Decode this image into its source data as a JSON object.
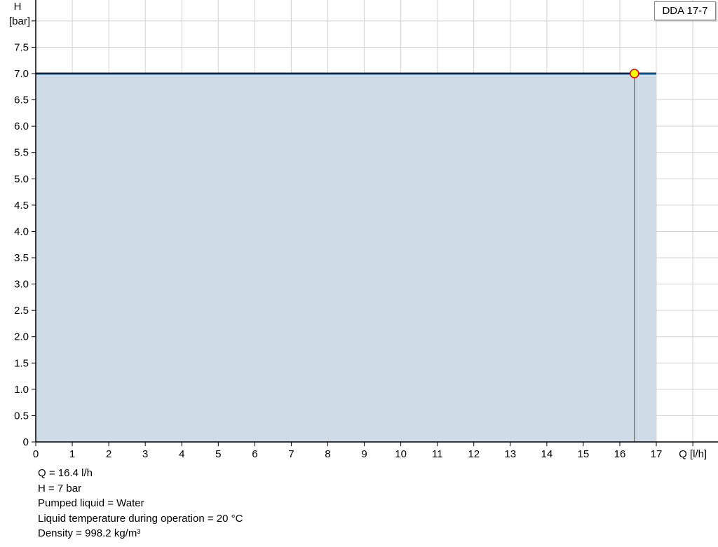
{
  "chart_data": {
    "type": "area",
    "title": "",
    "xlabel": "Q [l/h]",
    "ylabel_top": "H",
    "ylabel_unit": "[bar]",
    "xlim": [
      0,
      18
    ],
    "ylim": [
      0,
      8
    ],
    "xticks": [
      0,
      1,
      2,
      3,
      4,
      5,
      6,
      7,
      8,
      9,
      10,
      11,
      12,
      13,
      14,
      15,
      16,
      17
    ],
    "yticks": [
      "0",
      "0.5",
      "1.0",
      "1.5",
      "2.0",
      "2.5",
      "3.0",
      "3.5",
      "4.0",
      "4.5",
      "5.0",
      "5.5",
      "6.0",
      "6.5",
      "7.0",
      "7.5"
    ],
    "grid": true,
    "series": [
      {
        "name": "DDA 17-7",
        "x": [
          0,
          17
        ],
        "y": [
          7,
          7
        ],
        "color": "#0b4f8a",
        "fill": "#cfdbe7"
      }
    ],
    "duty_point": {
      "x": 16.4,
      "y": 7,
      "color": "#ffff00",
      "edge": "#e00000"
    },
    "legend": "top-right"
  },
  "info": [
    "Q = 16.4 l/h",
    "H = 7 bar",
    "Pumped liquid = Water",
    "Liquid temperature during operation = 20 °C",
    "Density = 998.2 kg/m³"
  ]
}
